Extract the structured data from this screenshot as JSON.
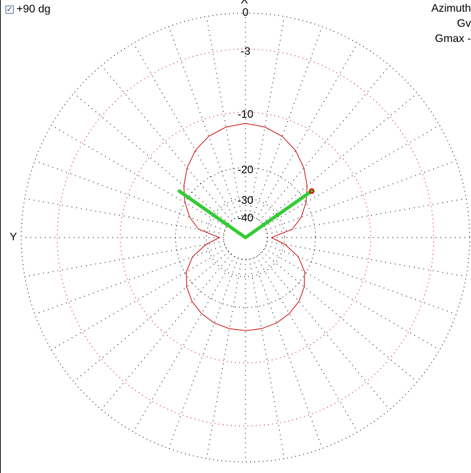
{
  "controls": {
    "plus90_checked": true,
    "plus90_label": "+90 dg"
  },
  "info": {
    "line1": "Azimuth",
    "line2": "Gv",
    "line3": "Gmax -"
  },
  "chart_data": {
    "type": "polar",
    "radial_unit": "dB",
    "ring_labels": [
      "0",
      "-3",
      "-10",
      "-20",
      "-30",
      "-40"
    ],
    "rings_db": [
      0,
      -3,
      -10,
      -20,
      -30,
      -40
    ],
    "axis_top_label": "X",
    "axis_left_label": "Y",
    "angular_grid_step_deg": 10,
    "pattern": {
      "color": "#cc0000",
      "points": [
        {
          "angle": 0,
          "db": -11.6
        },
        {
          "angle": 10,
          "db": -11.9
        },
        {
          "angle": 20,
          "db": -12.6
        },
        {
          "angle": 30,
          "db": -13.8
        },
        {
          "angle": 40,
          "db": -15.5
        },
        {
          "angle": 50,
          "db": -17.6
        },
        {
          "angle": 60,
          "db": -20.0
        },
        {
          "angle": 70,
          "db": -22.8
        },
        {
          "angle": 80,
          "db": -26.6
        },
        {
          "angle": 90,
          "db": -37.0
        },
        {
          "angle": 100,
          "db": -29.5
        },
        {
          "angle": 110,
          "db": -23.7
        },
        {
          "angle": 120,
          "db": -20.4
        },
        {
          "angle": 130,
          "db": -18.4
        },
        {
          "angle": 140,
          "db": -17.0
        },
        {
          "angle": 150,
          "db": -16.1
        },
        {
          "angle": 160,
          "db": -15.5
        },
        {
          "angle": 170,
          "db": -15.2
        },
        {
          "angle": 180,
          "db": -15.1
        }
      ],
      "symmetric": true
    },
    "beam_markers": {
      "color": "#33cc33",
      "angles_deg": [
        -55,
        55
      ],
      "db": -17.5,
      "marker_angle_deg": 55,
      "marker_color": "#dd0000"
    },
    "colors": {
      "outer_grid": "#000000",
      "inner_grid": "#dd0000",
      "pattern": "#cc0000",
      "beam": "#33cc33"
    }
  }
}
